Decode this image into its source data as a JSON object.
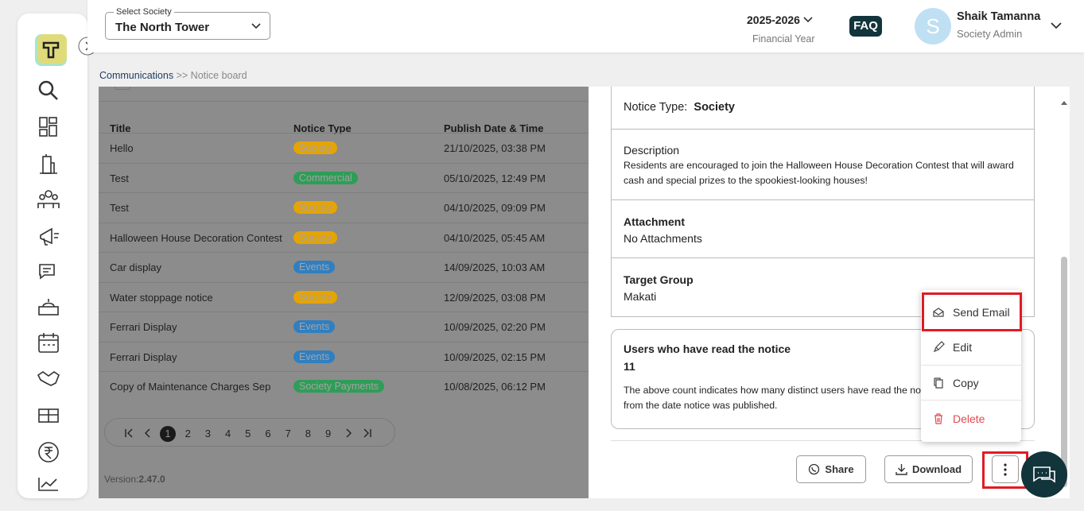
{
  "header": {
    "society_label": "Select Society",
    "society": "The North Tower",
    "year": "2025-2026",
    "year_label": "Financial Year",
    "faq": "FAQ",
    "avatar": "S",
    "user_name": "Shaik Tamanna",
    "user_role": "Society Admin"
  },
  "breadcrumb": {
    "parent": "Communications",
    "separator": ">>",
    "current": "Notice board"
  },
  "table": {
    "columns": [
      "Title",
      "Notice Type",
      "Publish Date & Time"
    ],
    "rows": [
      {
        "title": "Hello",
        "type": "Society",
        "type_color": "#e6a400",
        "date": "21/10/2025, 03:38 PM"
      },
      {
        "title": "Test",
        "type": "Commercial",
        "type_color": "#2e9e57",
        "date": "05/10/2025, 12:49 PM"
      },
      {
        "title": "Test",
        "type": "Society",
        "type_color": "#e6a400",
        "date": "04/10/2025, 09:09 PM"
      },
      {
        "title": "Halloween House Decoration Contest",
        "type": "Society",
        "type_color": "#e6a400",
        "date": "04/10/2025, 05:45 AM"
      },
      {
        "title": "Car display",
        "type": "Events",
        "type_color": "#2f7fc1",
        "date": "14/09/2025, 10:03 AM"
      },
      {
        "title": "Water stoppage notice",
        "type": "Society",
        "type_color": "#e6a400",
        "date": "12/09/2025, 03:08 PM"
      },
      {
        "title": "Ferrari Display",
        "type": "Events",
        "type_color": "#2f7fc1",
        "date": "10/09/2025, 02:20 PM"
      },
      {
        "title": "Ferrari Display",
        "type": "Events",
        "type_color": "#2f7fc1",
        "date": "10/09/2025, 02:15 PM"
      },
      {
        "title": "Copy of Maintenance Charges Sep",
        "type": "Society Payments",
        "type_color": "#2e9e57",
        "date": "10/08/2025, 06:12 PM"
      }
    ]
  },
  "pagination": {
    "pages": [
      1,
      2,
      3,
      4,
      5,
      6,
      7,
      8,
      9
    ],
    "current": 1
  },
  "version": {
    "label": "Version:",
    "value": "2.47.0"
  },
  "detail": {
    "notice_type_label": "Notice Type:",
    "notice_type": "Society",
    "description_label": "Description",
    "description": "Residents are encouraged to join the Halloween House Decoration Contest that will award cash and special prizes to the spookiest-looking houses!",
    "attachment_label": "Attachment",
    "attachment": "No Attachments",
    "target_label": "Target Group",
    "target": "Makati",
    "read_label": "Users who have read the notice",
    "read_count": 11,
    "read_note": "The above count indicates how many distinct users have read the notice from the date notice was published."
  },
  "actions": {
    "share": "Share",
    "download": "Download"
  },
  "menu": [
    "Send Email",
    "Edit",
    "Copy",
    "Delete"
  ]
}
